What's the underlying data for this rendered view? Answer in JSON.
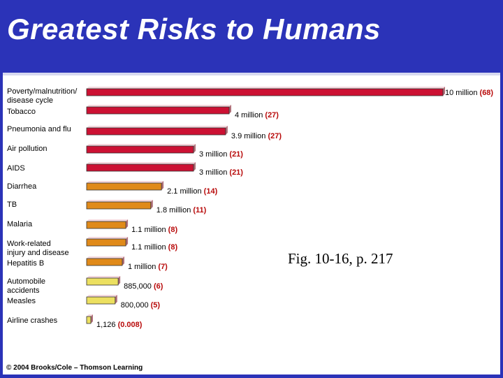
{
  "slide": {
    "title": "Greatest Risks to Humans",
    "caption": "Fig. 10-16, p. 217",
    "copyright": "© 2004 Brooks/Cole – Thomson Learning"
  },
  "chart_data": {
    "type": "bar",
    "orientation": "horizontal",
    "title": "",
    "xlabel": "",
    "ylabel": "",
    "grid": false,
    "legend": "none",
    "categories": [
      "Poverty/malnutrition/ disease cycle",
      "Tobacco",
      "Pneumonia and flu",
      "Air pollution",
      "AIDS",
      "Diarrhea",
      "TB",
      "Malaria",
      "Work-related injury and disease",
      "Hepatitis B",
      "Automobile accidents",
      "Measles",
      "Airline crashes"
    ],
    "values": [
      10000000,
      4000000,
      3900000,
      3000000,
      3000000,
      2100000,
      1800000,
      1100000,
      1100000,
      1000000,
      885000,
      800000,
      1126
    ],
    "value_labels": [
      "10 million",
      "4 million",
      "3.9 million",
      "3 million",
      "3 million",
      "2.1 million",
      "1.8 million",
      "1.1 million",
      "1.1 million",
      "1 million",
      "885,000",
      "800,000",
      "1,126"
    ],
    "percent_labels": [
      "(68)",
      "(27)",
      "(27)",
      "(21)",
      "(21)",
      "(14)",
      "(11)",
      "(8)",
      "(8)",
      "(7)",
      "(6)",
      "(5)",
      "(0.008)"
    ],
    "bar_colors": [
      "#cc1133",
      "#cc1133",
      "#cc1133",
      "#cc1133",
      "#cc1133",
      "#e08a1a",
      "#e08a1a",
      "#e08a1a",
      "#e08a1a",
      "#e08a1a",
      "#ece060",
      "#ece060",
      "#ece060"
    ],
    "label_color": "#000000",
    "percent_color": "#b80a0a"
  }
}
